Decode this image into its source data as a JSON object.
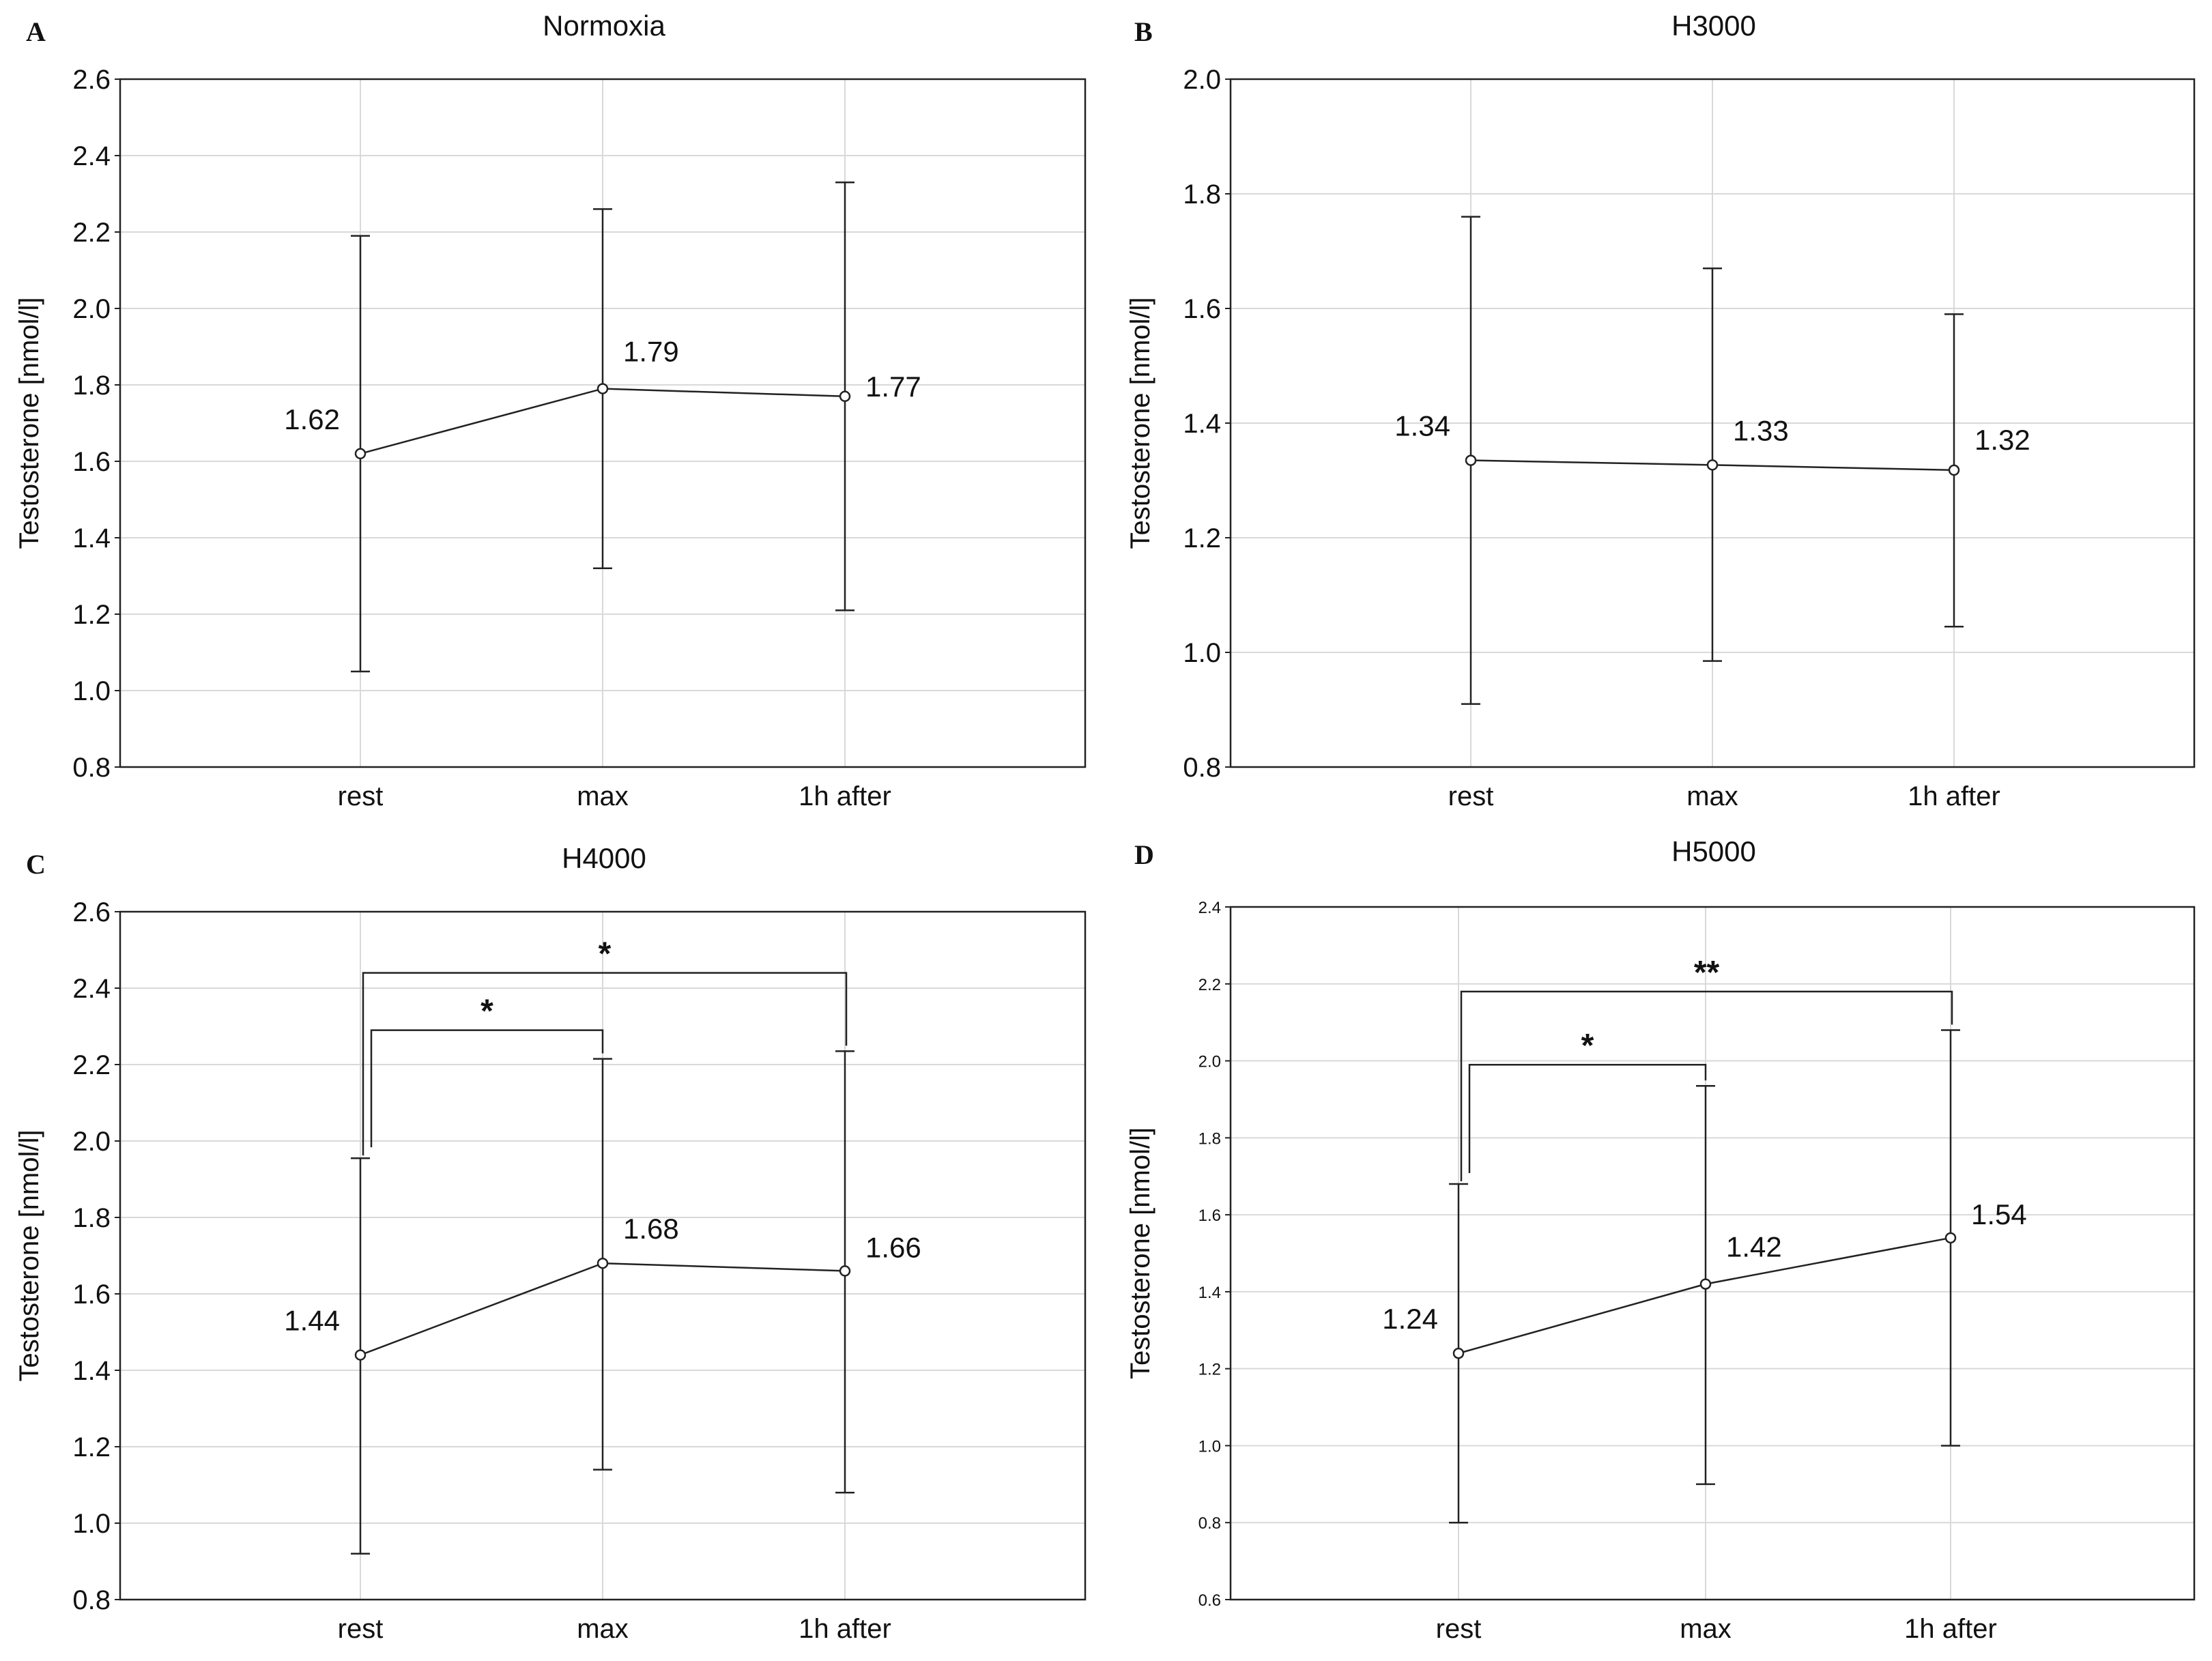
{
  "chart_data": [
    {
      "type": "line",
      "panel": "A",
      "title": "Normoxia",
      "xlabel": "",
      "ylabel": "Testosterone [nmol/l]",
      "categories": [
        "rest",
        "max",
        "1h after"
      ],
      "values": [
        1.62,
        1.79,
        1.77
      ],
      "value_labels": [
        "1.62",
        "1.79",
        "1.77"
      ],
      "error_low": [
        1.05,
        1.32,
        1.21
      ],
      "error_high": [
        2.19,
        2.26,
        2.33
      ],
      "ylim": [
        0.8,
        2.6
      ],
      "yticks": [
        "0.8",
        "1.0",
        "1.2",
        "1.4",
        "1.6",
        "1.8",
        "2.0",
        "2.2",
        "2.4",
        "2.6"
      ],
      "grid": true,
      "significance": []
    },
    {
      "type": "line",
      "panel": "B",
      "title": "H3000",
      "xlabel": "",
      "ylabel": "Testosterone [nmol/l]",
      "categories": [
        "rest",
        "max",
        "1h after"
      ],
      "values": [
        1.335,
        1.327,
        1.318
      ],
      "value_labels": [
        "1.34",
        "1.33",
        "1.32"
      ],
      "error_low": [
        0.91,
        0.985,
        1.045
      ],
      "error_high": [
        1.76,
        1.67,
        1.59
      ],
      "ylim": [
        0.8,
        2.0
      ],
      "yticks": [
        "0.8",
        "1.0",
        "1.2",
        "1.4",
        "1.6",
        "1.8",
        "2.0"
      ],
      "grid": true,
      "significance": []
    },
    {
      "type": "line",
      "panel": "C",
      "title": "H4000",
      "xlabel": "",
      "ylabel": "Testosterone [nmol/l]",
      "categories": [
        "rest",
        "max",
        "1h after"
      ],
      "values": [
        1.44,
        1.68,
        1.66
      ],
      "value_labels": [
        "1.44",
        "1.68",
        "1.66"
      ],
      "error_low": [
        0.92,
        1.14,
        1.08
      ],
      "error_high": [
        1.955,
        2.215,
        2.235
      ],
      "ylim": [
        0.8,
        2.6
      ],
      "yticks": [
        "0.8",
        "1.0",
        "1.2",
        "1.4",
        "1.6",
        "1.8",
        "2.0",
        "2.2",
        "2.4",
        "2.6"
      ],
      "grid": true,
      "significance": [
        {
          "from": 0,
          "to": 1,
          "label": "*",
          "y": 2.29
        },
        {
          "from": 0,
          "to": 2,
          "label": "*",
          "y": 2.44
        }
      ]
    },
    {
      "type": "line",
      "panel": "D",
      "title": "H5000",
      "xlabel": "",
      "ylabel": "Testosterone [nmol/l]",
      "categories": [
        "rest",
        "max",
        "1h after"
      ],
      "values": [
        1.24,
        1.42,
        1.54
      ],
      "value_labels": [
        "1.24",
        "1.42",
        "1.54"
      ],
      "error_low": [
        0.8,
        0.9,
        1.0
      ],
      "error_high": [
        1.68,
        1.935,
        2.08
      ],
      "ylim": [
        0.6,
        2.4
      ],
      "yticks": [
        "0.6",
        "0.8",
        "1.0",
        "1.2",
        "1.4",
        "1.6",
        "1.8",
        "2.0",
        "2.2",
        "2.4"
      ],
      "grid": true,
      "significance": [
        {
          "from": 0,
          "to": 1,
          "label": "*",
          "y": 1.99
        },
        {
          "from": 0,
          "to": 2,
          "label": "**",
          "y": 2.18
        }
      ]
    }
  ]
}
